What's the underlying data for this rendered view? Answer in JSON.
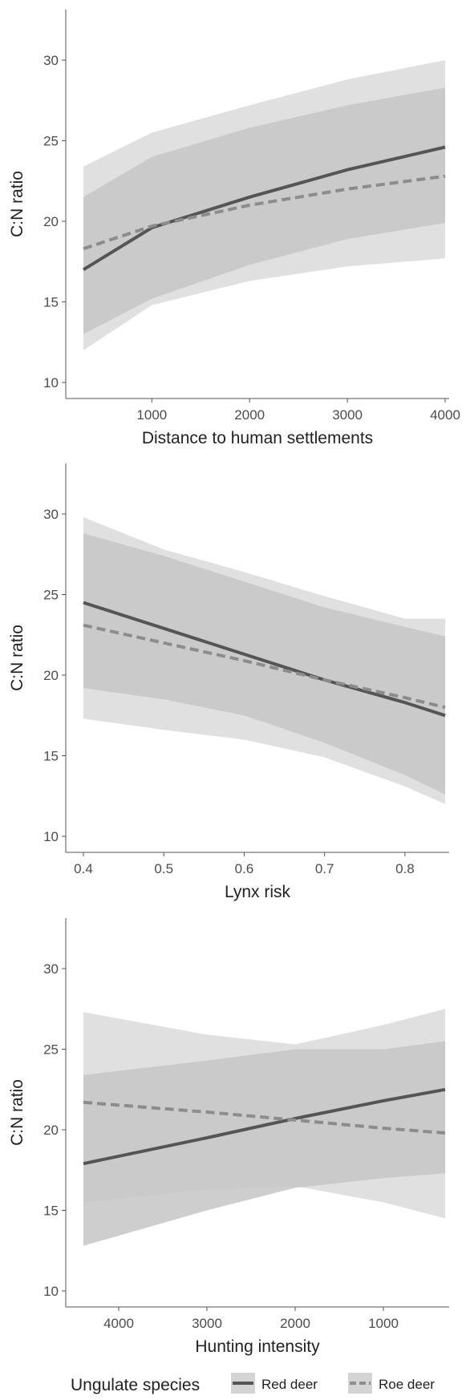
{
  "chart_data": [
    {
      "type": "line",
      "xlabel": "Distance to human settlements",
      "ylabel": "C:N ratio",
      "xlim": [
        300,
        4000
      ],
      "ylim": [
        10,
        33
      ],
      "x_ticks": [
        1000,
        2000,
        3000,
        4000
      ],
      "y_ticks": [
        10,
        15,
        20,
        25,
        30
      ],
      "series": [
        {
          "name": "Red deer",
          "style": "solid",
          "x": [
            300,
            1000,
            2000,
            3000,
            4000
          ],
          "y": [
            17.0,
            19.6,
            21.5,
            23.2,
            24.6
          ],
          "ci_lower": [
            13.0,
            15.2,
            17.3,
            18.9,
            19.9
          ],
          "ci_upper": [
            21.5,
            24.0,
            25.8,
            27.2,
            28.3
          ]
        },
        {
          "name": "Roe deer",
          "style": "dashed",
          "x": [
            300,
            1000,
            2000,
            3000,
            4000
          ],
          "y": [
            18.3,
            19.7,
            21.0,
            22.0,
            22.8
          ],
          "ci_lower": [
            12.0,
            14.8,
            16.3,
            17.2,
            17.7
          ],
          "ci_upper": [
            23.4,
            25.5,
            27.2,
            28.8,
            30.0
          ]
        }
      ]
    },
    {
      "type": "line",
      "xlabel": "Lynx risk",
      "ylabel": "C:N ratio",
      "xlim": [
        0.4,
        0.85
      ],
      "ylim": [
        10,
        33
      ],
      "x_ticks": [
        0.4,
        0.5,
        0.6,
        0.7,
        0.8
      ],
      "y_ticks": [
        10,
        15,
        20,
        25,
        30
      ],
      "series": [
        {
          "name": "Red deer",
          "style": "solid",
          "x": [
            0.4,
            0.5,
            0.6,
            0.7,
            0.8,
            0.85
          ],
          "y": [
            24.5,
            22.9,
            21.3,
            19.7,
            18.3,
            17.5
          ],
          "ci_lower": [
            19.2,
            18.5,
            17.5,
            15.8,
            13.8,
            12.6
          ],
          "ci_upper": [
            28.8,
            27.4,
            25.8,
            24.2,
            23.0,
            22.4
          ]
        },
        {
          "name": "Roe deer",
          "style": "dashed",
          "x": [
            0.4,
            0.5,
            0.6,
            0.7,
            0.8,
            0.85
          ],
          "y": [
            23.1,
            22.0,
            20.9,
            19.7,
            18.6,
            18.0
          ],
          "ci_lower": [
            17.3,
            16.6,
            16.0,
            14.9,
            13.1,
            12.0
          ],
          "ci_upper": [
            29.8,
            27.8,
            26.4,
            24.9,
            23.5,
            23.5
          ]
        }
      ]
    },
    {
      "type": "line",
      "xlabel": "Hunting intensity",
      "ylabel": "C:N ratio",
      "xlim": [
        4400,
        300
      ],
      "x_reversed": true,
      "ylim": [
        10,
        33
      ],
      "x_ticks": [
        4000,
        3000,
        2000,
        1000
      ],
      "y_ticks": [
        10,
        15,
        20,
        25,
        30
      ],
      "series": [
        {
          "name": "Red deer",
          "style": "solid",
          "x": [
            4400,
            3000,
            2000,
            1000,
            300
          ],
          "y": [
            17.9,
            19.5,
            20.7,
            21.8,
            22.5
          ],
          "ci_lower": [
            12.8,
            15.0,
            16.4,
            17.0,
            17.3
          ],
          "ci_upper": [
            23.4,
            24.3,
            25.0,
            25.0,
            25.5
          ]
        },
        {
          "name": "Roe deer",
          "style": "dashed",
          "x": [
            4400,
            3000,
            2000,
            1000,
            300
          ],
          "y": [
            21.7,
            21.1,
            20.6,
            20.1,
            19.8
          ],
          "ci_lower": [
            15.5,
            16.3,
            16.5,
            15.5,
            14.5
          ],
          "ci_upper": [
            27.3,
            25.9,
            25.3,
            26.5,
            27.5
          ]
        }
      ]
    }
  ],
  "legend": {
    "title": "Ungulate species",
    "items": [
      "Red deer",
      "Roe deer"
    ]
  },
  "colors": {
    "red_deer_line": "#555555",
    "roe_deer_line": "#8c8c8c",
    "red_deer_band": "#c6c6c6",
    "roe_deer_band": "#e0e0e0",
    "axis": "#555555",
    "text": "#222222"
  }
}
